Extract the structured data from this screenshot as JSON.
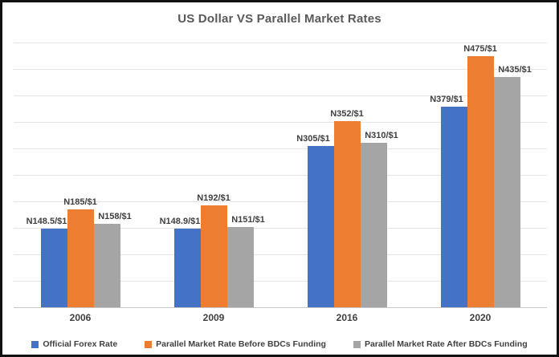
{
  "window": {
    "background": "#ffffff",
    "border_color": "#111111"
  },
  "chart_data": {
    "type": "bar",
    "title": "US Dollar VS Parallel Market Rates",
    "title_color": "#595959",
    "categories": [
      "2006",
      "2009",
      "2016",
      "2020"
    ],
    "series": [
      {
        "name": "Official Forex Rate",
        "color": "#4472C4",
        "values": [
          148.5,
          148.9,
          305,
          379
        ],
        "labels": [
          "N148.5/$1",
          "N148.9/$1",
          "N305/$1",
          "N379/$1"
        ]
      },
      {
        "name": "Parallel Market Rate Before BDCs Funding",
        "color": "#ED7D31",
        "values": [
          185,
          192,
          352,
          475
        ],
        "labels": [
          "N185/$1",
          "N192/$1",
          "N352/$1",
          "N475/$1"
        ]
      },
      {
        "name": "Parallel Market Rate After BDCs Funding",
        "color": "#A5A5A5",
        "values": [
          158,
          151,
          310,
          435
        ],
        "labels": [
          "N158/$1",
          "N151/$1",
          "N310/$1",
          "N435/$1"
        ]
      }
    ],
    "xlabel": "",
    "ylabel": "",
    "ylim": [
      0,
      500
    ],
    "gridline_step": 50,
    "grid": true,
    "y_tick_labels_visible": false,
    "data_label_color": "#404040",
    "legend_position": "bottom"
  }
}
